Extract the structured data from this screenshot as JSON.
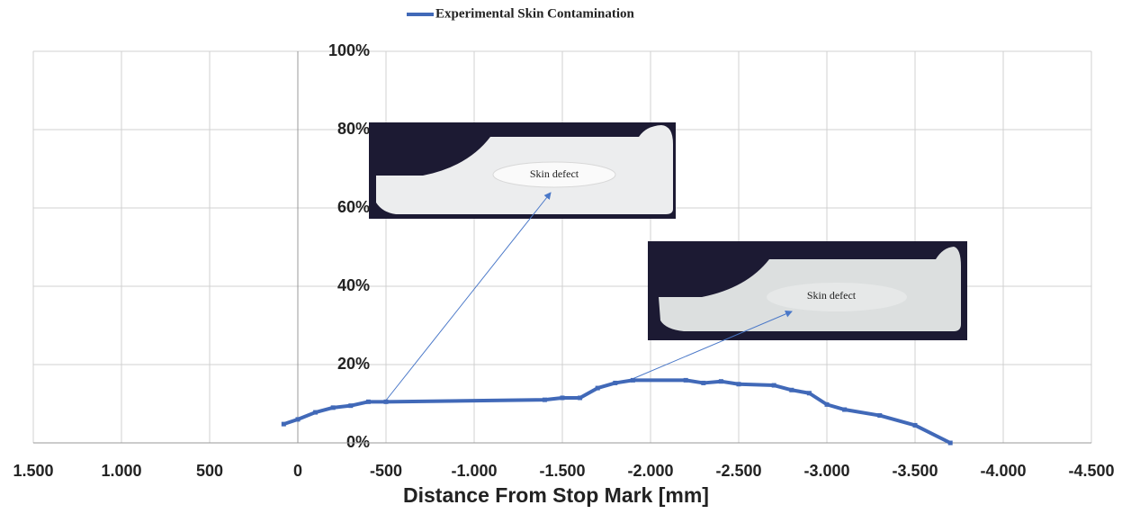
{
  "chart_data": {
    "type": "line",
    "legend": "top",
    "x_label": "Distance From Stop Mark [mm]",
    "xlim": [
      1500,
      -4500
    ],
    "xticks": [
      {
        "value": 1500,
        "label": "1.500"
      },
      {
        "value": 1000,
        "label": "1.000"
      },
      500,
      0,
      -500,
      {
        "value": -1000,
        "label": "-1.000"
      },
      {
        "value": -1500,
        "label": "-1.500"
      },
      {
        "value": -2000,
        "label": "-2.000"
      },
      {
        "value": -2500,
        "label": "-2.500"
      },
      {
        "value": -3000,
        "label": "-3.000"
      },
      {
        "value": -3500,
        "label": "-3.500"
      },
      {
        "value": -4000,
        "label": "-4.000"
      },
      {
        "value": -4500,
        "label": "-4.500"
      }
    ],
    "ylim": [
      0,
      100
    ],
    "yticks": [
      {
        "value": 0,
        "label": "0%"
      },
      {
        "value": 20,
        "label": "20%"
      },
      {
        "value": 40,
        "label": "40%"
      },
      {
        "value": 60,
        "label": "60%"
      },
      {
        "value": 80,
        "label": "80%"
      },
      {
        "value": 100,
        "label": "100%"
      }
    ],
    "grid": true,
    "x": [
      80,
      0,
      -100,
      -200,
      -300,
      -400,
      -500,
      -1400,
      -1500,
      -1600,
      -1700,
      -1800,
      -1900,
      -2200,
      -2300,
      -2400,
      -2500,
      -2700,
      -2800,
      -2900,
      -3000,
      -3100,
      -3300,
      -3500,
      -3700
    ],
    "series": [
      {
        "name": "Experimental Skin Contamination",
        "color": "#4169b8",
        "values": [
          4.8,
          6,
          7.8,
          9,
          9.5,
          10.5,
          10.5,
          11,
          11.5,
          11.5,
          14,
          15.3,
          16,
          16,
          15.3,
          15.7,
          15,
          14.7,
          13.5,
          12.7,
          9.8,
          8.5,
          7,
          4.5,
          0
        ]
      }
    ],
    "annotations": [
      "Skin defect",
      "Skin defect"
    ]
  }
}
